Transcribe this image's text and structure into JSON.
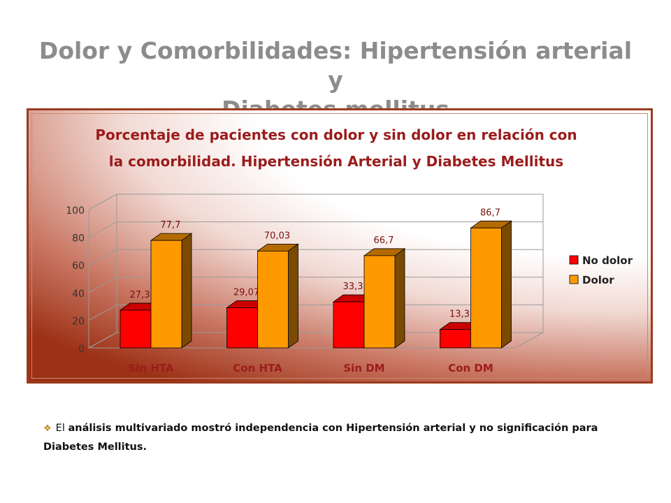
{
  "slide": {
    "title_line1": "Dolor y Comorbilidades: Hipertensión arterial y",
    "title_line2": "Diabetes mellitus"
  },
  "chart_data": {
    "type": "bar",
    "title_lines": [
      "Porcentaje de pacientes con dolor y sin dolor en relación con",
      "la comorbilidad. Hipertensión Arterial y Diabetes Mellitus"
    ],
    "categories": [
      "Sin HTA",
      "Con HTA",
      "Sin DM",
      "Con DM"
    ],
    "series": [
      {
        "name": "No dolor",
        "values": [
          27.3,
          29.07,
          33.3,
          13.3
        ],
        "labels": [
          "27,3",
          "29,07",
          "33,3",
          "13,3"
        ],
        "color": "#ff0000",
        "side_color": "#b30000",
        "top_color": "#cc0000"
      },
      {
        "name": "Dolor",
        "values": [
          77.7,
          70.03,
          66.7,
          86.7
        ],
        "labels": [
          "77,7",
          "70,03",
          "66,7",
          "86,7"
        ],
        "color": "#ff9900",
        "side_color": "#7a4a00",
        "top_color": "#b36b00"
      }
    ],
    "y_ticks": [
      "0",
      "20",
      "40",
      "60",
      "80",
      "100"
    ],
    "ylim": [
      0,
      100
    ],
    "grid": true,
    "legend_position": "right",
    "style": "3d-clustered-column"
  },
  "note": {
    "bullet_icon": "diamond-bullet-icon",
    "lead": "El",
    "text": "análisis multivariado mostró independencia con Hipertensión arterial y no significación para Diabetes Mellitus."
  },
  "colors": {
    "title_gray": "#8c8c8c",
    "frame_border": "#9b3b1e",
    "chart_title": "#9b1c1c",
    "axis_label": "#9b1c1c"
  }
}
